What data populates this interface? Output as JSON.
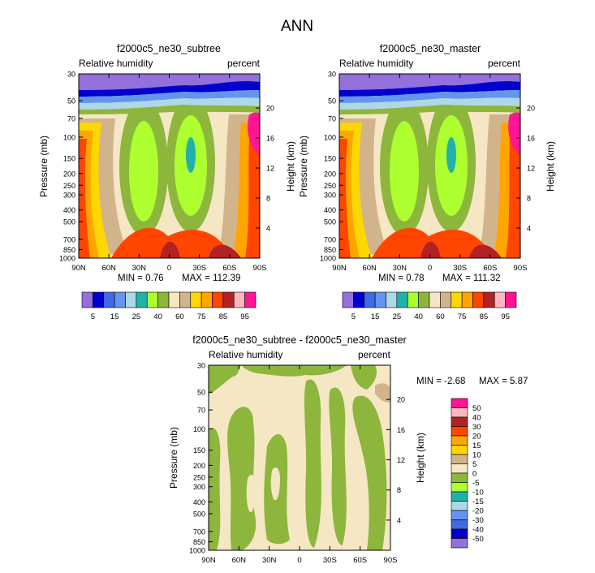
{
  "page_title": "ANN",
  "colors": {
    "abs_scale": [
      "#9370DB",
      "#0000CD",
      "#4169E1",
      "#6495ED",
      "#ADD8E6",
      "#20B2AA",
      "#ADFF2F",
      "#8DB63C",
      "#F5E6C4",
      "#D2B48C",
      "#FFD700",
      "#FFA500",
      "#FF4500",
      "#B22222",
      "#FFB6C1",
      "#FF1493"
    ],
    "diff_scale": [
      "#FF1493",
      "#FFB6C1",
      "#B22222",
      "#FF4500",
      "#FFA500",
      "#FFD700",
      "#D2B48C",
      "#F5E6C4",
      "#8DB63C",
      "#ADFF2F",
      "#20B2AA",
      "#ADD8E6",
      "#6495ED",
      "#4169E1",
      "#0000CD",
      "#9370DB"
    ]
  },
  "chart_data": [
    {
      "type": "heatmap",
      "title": "f2000c5_ne30_subtree",
      "variable_label": "Relative humidity",
      "units_label": "percent",
      "ylabel": "Pressure (mb)",
      "ylabel_right": "Height (km)",
      "x_ticks": [
        "90N",
        "60N",
        "30N",
        "0",
        "30S",
        "60S",
        "90S"
      ],
      "xlim": [
        90,
        -90
      ],
      "y_ticks": [
        30,
        50,
        70,
        100,
        150,
        200,
        250,
        300,
        400,
        500,
        700,
        850,
        1000
      ],
      "y_scale": "log",
      "ylim": [
        1000,
        30
      ],
      "height_ticks": [
        20,
        16,
        12,
        8,
        4
      ],
      "min_label": "MIN =   0.76",
      "max_label": "MAX = 112.39",
      "levels": [
        5,
        10,
        15,
        20,
        25,
        30,
        40,
        50,
        60,
        70,
        75,
        80,
        85,
        90,
        95
      ],
      "level_labels": [
        "5",
        "15",
        "25",
        "40",
        "60",
        "75",
        "85",
        "95"
      ],
      "legend": "bottom"
    },
    {
      "type": "heatmap",
      "title": "f2000c5_ne30_master",
      "variable_label": "Relative humidity",
      "units_label": "percent",
      "ylabel": "Pressure (mb)",
      "ylabel_right": "Height (km)",
      "x_ticks": [
        "90N",
        "60N",
        "30N",
        "0",
        "30S",
        "60S",
        "90S"
      ],
      "xlim": [
        90,
        -90
      ],
      "y_ticks": [
        30,
        50,
        70,
        100,
        150,
        200,
        250,
        300,
        400,
        500,
        700,
        850,
        1000
      ],
      "y_scale": "log",
      "ylim": [
        1000,
        30
      ],
      "height_ticks": [
        20,
        16,
        12,
        8,
        4
      ],
      "min_label": "MIN =   0.78",
      "max_label": "MAX = 111.32",
      "levels": [
        5,
        10,
        15,
        20,
        25,
        30,
        40,
        50,
        60,
        70,
        75,
        80,
        85,
        90,
        95
      ],
      "level_labels": [
        "5",
        "15",
        "25",
        "40",
        "60",
        "75",
        "85",
        "95"
      ],
      "legend": "bottom"
    },
    {
      "type": "heatmap",
      "title": "f2000c5_ne30_subtree - f2000c5_ne30_master",
      "variable_label": "Relative humidity",
      "units_label": "percent",
      "ylabel": "Pressure (mb)",
      "ylabel_right": "Height (km)",
      "x_ticks": [
        "90N",
        "60N",
        "30N",
        "0",
        "30S",
        "60S",
        "90S"
      ],
      "xlim": [
        90,
        -90
      ],
      "y_ticks": [
        30,
        50,
        70,
        100,
        150,
        200,
        250,
        300,
        400,
        500,
        700,
        850,
        1000
      ],
      "y_scale": "log",
      "ylim": [
        1000,
        30
      ],
      "height_ticks": [
        20,
        16,
        12,
        8,
        4
      ],
      "min_label": "MIN =  -2.68",
      "max_label": "MAX =   5.87",
      "levels": [
        50,
        40,
        30,
        20,
        15,
        10,
        5,
        0,
        -5,
        -10,
        -15,
        -20,
        -30,
        -40,
        -50
      ],
      "level_labels": [
        "50",
        "40",
        "30",
        "20",
        "15",
        "10",
        "5",
        "0",
        "-5",
        "-10",
        "-15",
        "-20",
        "-30",
        "-40",
        "-50"
      ],
      "legend": "right"
    }
  ]
}
